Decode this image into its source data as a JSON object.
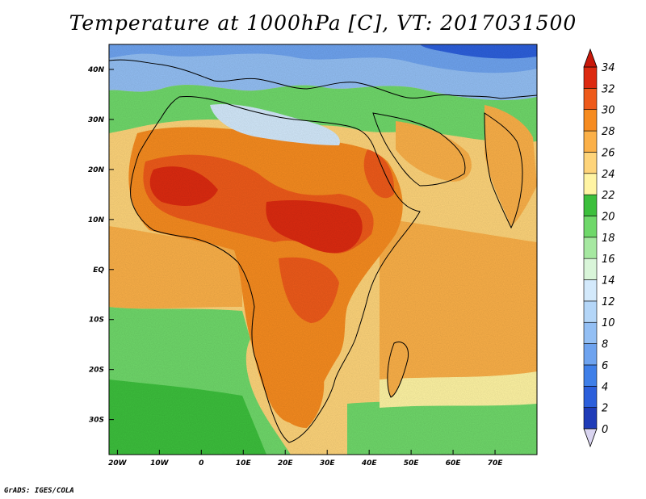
{
  "title": "Temperature at 1000hPa [C], VT: 2017031500",
  "credit": "GrADS: IGES/COLA",
  "map": {
    "region": "Africa",
    "lon_range": [
      -22,
      80
    ],
    "lat_range": [
      -37,
      45
    ],
    "lat_ticks": [
      {
        "value": 40,
        "label": "40N"
      },
      {
        "value": 30,
        "label": "30N"
      },
      {
        "value": 20,
        "label": "20N"
      },
      {
        "value": 10,
        "label": "10N"
      },
      {
        "value": 0,
        "label": "EQ"
      },
      {
        "value": -10,
        "label": "10S"
      },
      {
        "value": -20,
        "label": "20S"
      },
      {
        "value": -30,
        "label": "30S"
      }
    ],
    "lon_ticks": [
      {
        "value": -20,
        "label": "20W"
      },
      {
        "value": -10,
        "label": "10W"
      },
      {
        "value": 0,
        "label": "0"
      },
      {
        "value": 10,
        "label": "10E"
      },
      {
        "value": 20,
        "label": "20E"
      },
      {
        "value": 30,
        "label": "30E"
      },
      {
        "value": 40,
        "label": "40E"
      },
      {
        "value": 50,
        "label": "50E"
      },
      {
        "value": 60,
        "label": "60E"
      },
      {
        "value": 70,
        "label": "70E"
      }
    ]
  },
  "colorbar": {
    "levels": [
      {
        "label": "0",
        "color": "#1a1e8c"
      },
      {
        "label": "2",
        "color": "#1f3cb8"
      },
      {
        "label": "4",
        "color": "#2c5fdb"
      },
      {
        "label": "6",
        "color": "#3f7fe8"
      },
      {
        "label": "8",
        "color": "#6ea3ef"
      },
      {
        "label": "10",
        "color": "#93bff4"
      },
      {
        "label": "12",
        "color": "#b4d6f8"
      },
      {
        "label": "14",
        "color": "#d3e9fb"
      },
      {
        "label": "16",
        "color": "#d9f5d9"
      },
      {
        "label": "18",
        "color": "#a6e8a1"
      },
      {
        "label": "20",
        "color": "#6fd86a"
      },
      {
        "label": "22",
        "color": "#3cbf3c"
      },
      {
        "label": "24",
        "color": "#fff4a3"
      },
      {
        "label": "26",
        "color": "#fed47a"
      },
      {
        "label": "28",
        "color": "#fbb048"
      },
      {
        "label": "30",
        "color": "#f68b1f"
      },
      {
        "label": "32",
        "color": "#ee5a1a"
      },
      {
        "label": "34",
        "color": "#dc2a10"
      }
    ],
    "under_color": "#d9d4f0",
    "over_color": "#c8180a"
  }
}
